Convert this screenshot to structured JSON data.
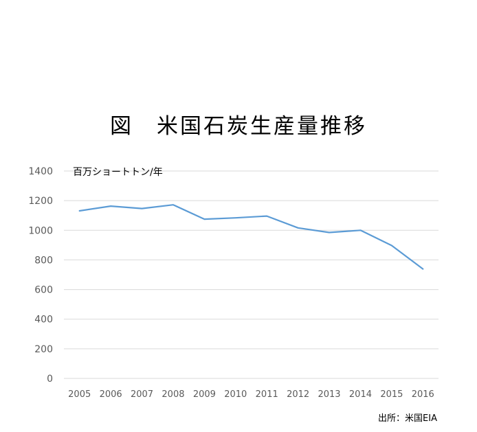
{
  "chart_data": {
    "type": "line",
    "title": "図　米国石炭生産量推移",
    "ylabel": "百万ショートトン/年",
    "ylim": [
      0,
      1400
    ],
    "yticks": [
      0,
      200,
      400,
      600,
      800,
      1000,
      1200,
      1400
    ],
    "grid": true,
    "categories": [
      "2005",
      "2006",
      "2007",
      "2008",
      "2009",
      "2010",
      "2011",
      "2012",
      "2013",
      "2014",
      "2015",
      "2016"
    ],
    "series": [
      {
        "values": [
          1131,
          1163,
          1147,
          1172,
          1075,
          1084,
          1096,
          1016,
          985,
          1000,
          897,
          739
        ]
      }
    ],
    "source": "出所：米国EIA",
    "colors": {
      "line": "#5b9bd5",
      "grid": "#d9d9d9",
      "tick": "#595959"
    }
  }
}
